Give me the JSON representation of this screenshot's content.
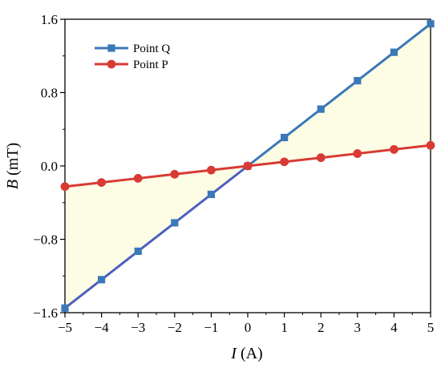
{
  "chart_data": {
    "type": "line",
    "title": "",
    "xlabel_symbol": "I",
    "xlabel_unit": " (A)",
    "ylabel_symbol": "B",
    "ylabel_unit": " (mT)",
    "x": [
      -5,
      -4,
      -3,
      -2,
      -1,
      0,
      1,
      2,
      3,
      4,
      5
    ],
    "xlim": [
      -5,
      5
    ],
    "ylim": [
      -1.6,
      1.6
    ],
    "xticks": [
      -5,
      -4,
      -3,
      -2,
      -1,
      0,
      1,
      2,
      3,
      4,
      5
    ],
    "yticks": [
      -1.6,
      -0.8,
      0.0,
      0.8,
      1.6
    ],
    "xtick_labels": [
      "−5",
      "−4",
      "−3",
      "−2",
      "−1",
      "0",
      "1",
      "2",
      "3",
      "4",
      "5"
    ],
    "ytick_labels": [
      "−1.6",
      "−0.8",
      "0.0",
      "0.8",
      "1.6"
    ],
    "grid": false,
    "legend_position": "top-left",
    "shaded_region": "between series",
    "series": [
      {
        "name": "Point Q",
        "values": [
          -1.55,
          -1.24,
          -0.93,
          -0.62,
          -0.31,
          0.0,
          0.31,
          0.62,
          0.93,
          1.24,
          1.55
        ],
        "marker": "square",
        "color": "#3a78b8",
        "marker_color": "#3a78b8",
        "negative_color": "#4e5fc0"
      },
      {
        "name": "Point P",
        "values": [
          -0.225,
          -0.18,
          -0.135,
          -0.09,
          -0.045,
          0.0,
          0.045,
          0.09,
          0.135,
          0.18,
          0.225
        ],
        "marker": "circle",
        "color": "#d83a34",
        "marker_color": "#d83a34"
      }
    ],
    "fill_color": "#fcfde4"
  }
}
